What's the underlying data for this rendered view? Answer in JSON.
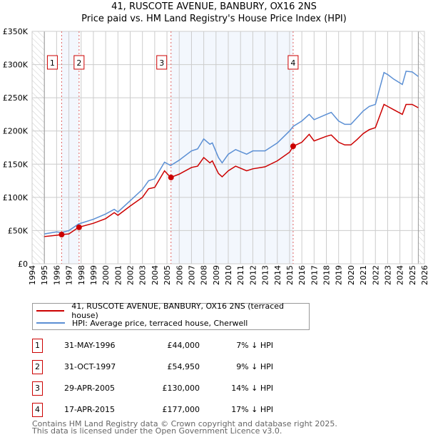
{
  "chart_data": {
    "type": "line",
    "title": "41, RUSCOTE AVENUE, BANBURY, OX16 2NS",
    "subtitle": "Price paid vs. HM Land Registry's House Price Index (HPI)",
    "xlim": [
      1994,
      2026
    ],
    "ylim": [
      0,
      350000
    ],
    "x_ticks": [
      "1994",
      "1995",
      "1996",
      "1997",
      "1998",
      "1999",
      "2000",
      "2001",
      "2002",
      "2003",
      "2004",
      "2005",
      "2006",
      "2007",
      "2008",
      "2009",
      "2010",
      "2011",
      "2012",
      "2013",
      "2014",
      "2015",
      "2016",
      "2017",
      "2018",
      "2019",
      "2020",
      "2021",
      "2022",
      "2023",
      "2024",
      "2025",
      "2026"
    ],
    "y_ticks": [
      {
        "v": 0,
        "label": "£0"
      },
      {
        "v": 50000,
        "label": "£50K"
      },
      {
        "v": 100000,
        "label": "£100K"
      },
      {
        "v": 150000,
        "label": "£150K"
      },
      {
        "v": 200000,
        "label": "£200K"
      },
      {
        "v": 250000,
        "label": "£250K"
      },
      {
        "v": 300000,
        "label": "£300K"
      },
      {
        "v": 350000,
        "label": "£350K"
      }
    ],
    "grid": true,
    "hatched_ranges": [
      [
        1994,
        1995
      ],
      [
        2025.5,
        2026
      ]
    ],
    "shaded_ranges": [
      [
        1996.41,
        1997.83
      ],
      [
        2005.33,
        2015.29
      ]
    ],
    "x": [
      1995,
      1996,
      1996.4,
      1997,
      1997.8,
      1999,
      2000,
      2000.7,
      2001,
      2002,
      2003,
      2003.5,
      2004,
      2004.8,
      2005.3,
      2006,
      2007,
      2007.5,
      2008,
      2008.5,
      2008.7,
      2009.2,
      2009.5,
      2010,
      2010.6,
      2011.5,
      2012,
      2013,
      2014,
      2015,
      2015.3,
      2016,
      2016.6,
      2017,
      2018,
      2018.4,
      2019,
      2019.5,
      2020,
      2020.5,
      2021,
      2021.5,
      2022,
      2022.7,
      2023,
      2023.5,
      2024.2,
      2024.5,
      2025,
      2025.5
    ],
    "series": [
      {
        "name": "41, RUSCOTE AVENUE, BANBURY, OX16 2NS (terraced house)",
        "color": "#cc0000",
        "values": [
          41000,
          43000,
          44000,
          45000,
          55000,
          61000,
          68000,
          77000,
          73000,
          87000,
          100000,
          113000,
          115000,
          140000,
          130000,
          135000,
          145000,
          147000,
          160000,
          152000,
          155000,
          136000,
          131000,
          140000,
          147000,
          140000,
          143000,
          146000,
          155000,
          168000,
          177000,
          183000,
          195000,
          185000,
          192000,
          194000,
          183000,
          179000,
          179000,
          187000,
          196000,
          202000,
          205000,
          240000,
          237000,
          232000,
          225000,
          240000,
          240000,
          235000
        ]
      },
      {
        "name": "HPI: Average price, terraced house, Cherwell",
        "color": "#5b8fd4",
        "values": [
          45000,
          48000,
          47000,
          50000,
          60000,
          67000,
          75000,
          82000,
          78000,
          95000,
          112000,
          125000,
          128000,
          153000,
          148000,
          156000,
          170000,
          173000,
          188000,
          180000,
          182000,
          160000,
          152000,
          165000,
          172000,
          165000,
          170000,
          170000,
          182000,
          200000,
          207000,
          215000,
          225000,
          217000,
          225000,
          228000,
          215000,
          210000,
          210000,
          220000,
          230000,
          237000,
          240000,
          288000,
          285000,
          278000,
          270000,
          290000,
          289000,
          282000
        ]
      }
    ],
    "sales": [
      {
        "label": "1",
        "x": 1996.41,
        "value": 44000
      },
      {
        "label": "2",
        "x": 1997.83,
        "value": 54950
      },
      {
        "label": "3",
        "x": 2005.33,
        "value": 130000
      },
      {
        "label": "4",
        "x": 2015.29,
        "value": 177000
      }
    ]
  },
  "legend": {
    "property": "41, RUSCOTE AVENUE, BANBURY, OX16 2NS (terraced house)",
    "hpi": "HPI: Average price, terraced house, Cherwell"
  },
  "transactions": [
    {
      "num": "1",
      "date": "31-MAY-1996",
      "price": "£44,000",
      "pct": "7% ↓ HPI"
    },
    {
      "num": "2",
      "date": "31-OCT-1997",
      "price": "£54,950",
      "pct": "9% ↓ HPI"
    },
    {
      "num": "3",
      "date": "29-APR-2005",
      "price": "£130,000",
      "pct": "14% ↓ HPI"
    },
    {
      "num": "4",
      "date": "17-APR-2015",
      "price": "£177,000",
      "pct": "17% ↓ HPI"
    }
  ],
  "footer": {
    "line1": "Contains HM Land Registry data © Crown copyright and database right 2025.",
    "line2": "This data is licensed under the Open Government Licence v3.0."
  }
}
